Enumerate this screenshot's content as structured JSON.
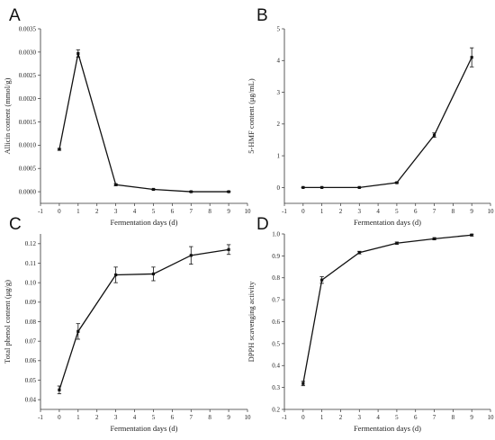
{
  "chart_data": [
    {
      "type": "line",
      "panel_label": "A",
      "xlabel": "Fermentation days (d)",
      "ylabel": "Allicin content (mmol/g)",
      "xlim": [
        -1,
        10
      ],
      "ylim": [
        -0.00025,
        0.0035
      ],
      "xticks": [
        -1,
        0,
        1,
        2,
        3,
        4,
        5,
        6,
        7,
        8,
        9,
        10
      ],
      "yticks": [
        0.0,
        0.0005,
        0.001,
        0.0015,
        0.002,
        0.0025,
        0.003,
        0.0035
      ],
      "ytick_labels": [
        "0.0000",
        "0.0005",
        "0.0010",
        "0.0015",
        "0.0020",
        "0.0025",
        "0.0030",
        "0.0035"
      ],
      "x": [
        0,
        1,
        3,
        5,
        7,
        9
      ],
      "y": [
        0.00091,
        0.00297,
        0.00015,
        5e-05,
        0.0,
        0.0
      ],
      "yerr": [
        2e-05,
        8e-05,
        2e-05,
        1e-05,
        1e-05,
        1e-05
      ],
      "grid": false
    },
    {
      "type": "line",
      "panel_label": "B",
      "xlabel": "Fermentation days (d)",
      "ylabel": "5-HMF content (μg/mL)",
      "xlim": [
        -1,
        10
      ],
      "ylim": [
        -0.5,
        5
      ],
      "xticks": [
        -1,
        0,
        1,
        2,
        3,
        4,
        5,
        6,
        7,
        8,
        9,
        10
      ],
      "yticks": [
        0,
        1,
        2,
        3,
        4,
        5
      ],
      "ytick_labels": [
        "0",
        "1",
        "2",
        "3",
        "4",
        "5"
      ],
      "x": [
        0,
        1,
        3,
        5,
        7,
        9
      ],
      "y": [
        0.0,
        0.0,
        0.0,
        0.15,
        1.65,
        4.1
      ],
      "yerr": [
        0.01,
        0.01,
        0.01,
        0.02,
        0.07,
        0.3
      ],
      "grid": false
    },
    {
      "type": "line",
      "panel_label": "C",
      "xlabel": "Fermentation days (d)",
      "ylabel": "Total phenol content (μg/g)",
      "xlim": [
        -1,
        10
      ],
      "ylim": [
        0.035,
        0.125
      ],
      "xticks": [
        -1,
        0,
        1,
        2,
        3,
        4,
        5,
        6,
        7,
        8,
        9,
        10
      ],
      "yticks": [
        0.04,
        0.05,
        0.06,
        0.07,
        0.08,
        0.09,
        0.1,
        0.11,
        0.12
      ],
      "ytick_labels": [
        "0.04",
        "0.05",
        "0.06",
        "0.07",
        "0.08",
        "0.09",
        "0.10",
        "0.11",
        "0.12"
      ],
      "x": [
        0,
        1,
        3,
        5,
        7,
        9
      ],
      "y": [
        0.045,
        0.075,
        0.104,
        0.1045,
        0.114,
        0.117
      ],
      "yerr": [
        0.002,
        0.004,
        0.004,
        0.0035,
        0.0045,
        0.0025
      ],
      "grid": false
    },
    {
      "type": "line",
      "panel_label": "D",
      "xlabel": "Fermentation days (d)",
      "ylabel": "DPPH scavenging activity",
      "xlim": [
        -1,
        10
      ],
      "ylim": [
        0.2,
        1.0
      ],
      "xticks": [
        -1,
        0,
        1,
        2,
        3,
        4,
        5,
        6,
        7,
        8,
        9,
        10
      ],
      "yticks": [
        0.2,
        0.3,
        0.4,
        0.5,
        0.6,
        0.7,
        0.8,
        0.9,
        1.0
      ],
      "ytick_labels": [
        "0.2",
        "0.3",
        "0.4",
        "0.5",
        "0.6",
        "0.7",
        "0.8",
        "0.9",
        "1.0"
      ],
      "x": [
        0,
        1,
        3,
        5,
        7,
        9
      ],
      "y": [
        0.318,
        0.79,
        0.915,
        0.958,
        0.978,
        0.995
      ],
      "yerr": [
        0.01,
        0.015,
        0.006,
        0.005,
        0.005,
        0.004
      ],
      "grid": false
    }
  ]
}
